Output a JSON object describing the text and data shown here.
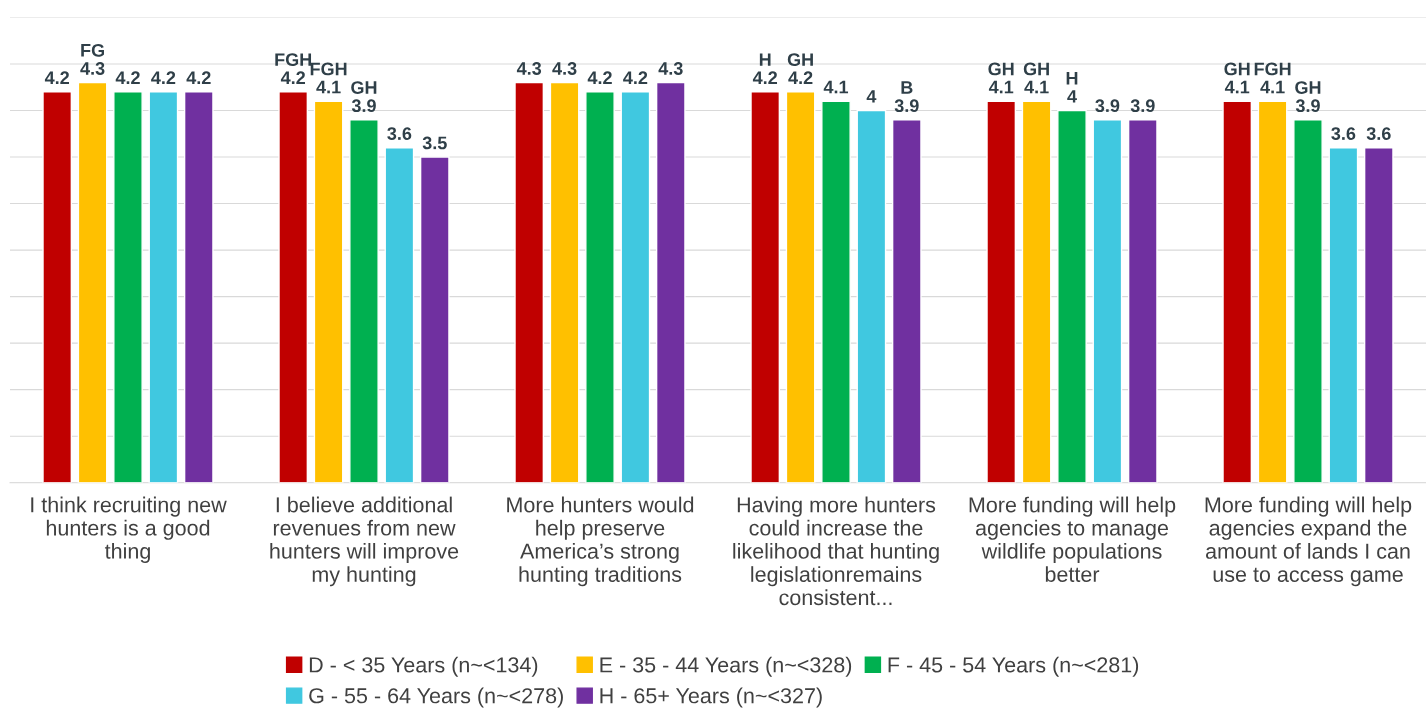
{
  "chart_data": {
    "type": "bar",
    "categories": [
      "I think recruiting new\nhunters is a good\nthing",
      "I believe additional\nrevenues from new\nhunters will improve\nmy hunting",
      "More hunters would\nhelp preserve\nAmerica’s strong\nhunting traditions",
      "Having more hunters\ncould increase the\nlikelihood that hunting\nlegislationremains\nconsistent...",
      "More funding will help\nagencies to manage\nwildlife populations\nbetter",
      "More funding will help\nagencies expand the\namount of lands I can\nuse to access game"
    ],
    "series": [
      {
        "name": "D - < 35 Years (n~<134)",
        "color": "#c00000",
        "values": [
          4.2,
          4.2,
          4.3,
          4.2,
          4.1,
          4.1
        ],
        "value_labels": [
          "4.2",
          "FGH\n4.2",
          "4.3",
          "H\n4.2",
          "GH\n4.1",
          "GH\n4.1"
        ]
      },
      {
        "name": "E - 35 - 44 Years (n~<328)",
        "color": "#ffc000",
        "values": [
          4.3,
          4.1,
          4.3,
          4.2,
          4.1,
          4.1
        ],
        "value_labels": [
          "FG\n4.3",
          "FGH\n4.1",
          "4.3",
          "GH\n4.2",
          "GH\n4.1",
          "FGH\n4.1"
        ]
      },
      {
        "name": "F - 45 - 54 Years (n~<281)",
        "color": "#00b050",
        "values": [
          4.2,
          3.9,
          4.2,
          4.1,
          4.0,
          3.9
        ],
        "value_labels": [
          "4.2",
          "GH\n3.9",
          "4.2",
          "4.1",
          "H\n4",
          "GH\n3.9"
        ]
      },
      {
        "name": "G - 55 - 64 Years (n~<278)",
        "color": "#40c8e0",
        "values": [
          4.2,
          3.6,
          4.2,
          4.0,
          3.9,
          3.6
        ],
        "value_labels": [
          "4.2",
          "3.6",
          "4.2",
          "4",
          "3.9",
          "3.6"
        ]
      },
      {
        "name": "H - 65+ Years (n~<327)",
        "color": "#7030a0",
        "values": [
          4.2,
          3.5,
          4.3,
          3.9,
          3.9,
          3.6
        ],
        "value_labels": [
          "4.2",
          "3.5",
          "4.3",
          "B\n3.9",
          "3.9",
          "3.6"
        ]
      }
    ],
    "ylim": [
      0,
      5
    ],
    "yticks": [
      {
        "value": 0,
        "label": null
      },
      {
        "value": 0.5,
        "label": null
      },
      {
        "value": 1,
        "label": null
      },
      {
        "value": 1.5,
        "label": null
      },
      {
        "value": 2,
        "label": null
      },
      {
        "value": 2.5,
        "label": null
      },
      {
        "value": 3,
        "label": null
      },
      {
        "value": 3.5,
        "label": null
      },
      {
        "value": 4,
        "label": null
      },
      {
        "value": 4.5,
        "label": null
      },
      {
        "value": 5,
        "label": null
      }
    ],
    "tick_labels": "x",
    "grid": "y",
    "legend": "bottom"
  }
}
